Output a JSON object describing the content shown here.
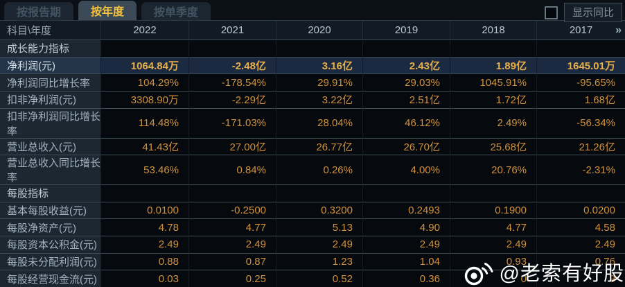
{
  "tabs": [
    {
      "label": "按报告期",
      "active": false
    },
    {
      "label": "按年度",
      "active": true
    },
    {
      "label": "按单季度",
      "active": false
    }
  ],
  "controls": {
    "show_yoy_label": "显示同比",
    "checkbox_checked": false
  },
  "table": {
    "corner_header": "科目\\年度",
    "years": [
      "2022",
      "2021",
      "2020",
      "2019",
      "2018",
      "2017"
    ],
    "more_icon": "»",
    "rows": [
      {
        "type": "section",
        "label": "成长能力指标",
        "values": [
          "",
          "",
          "",
          "",
          "",
          ""
        ]
      },
      {
        "type": "data",
        "highlight": true,
        "label": "净利润(元)",
        "values": [
          "1064.84万",
          "-2.48亿",
          "3.16亿",
          "2.43亿",
          "1.89亿",
          "1645.01万"
        ]
      },
      {
        "type": "data",
        "label": "净利润同比增长率",
        "values": [
          "104.29%",
          "-178.54%",
          "29.91%",
          "29.03%",
          "1045.91%",
          "-95.65%"
        ]
      },
      {
        "type": "data",
        "label": "扣非净利润(元)",
        "values": [
          "3308.90万",
          "-2.29亿",
          "3.22亿",
          "2.51亿",
          "1.72亿",
          "1.68亿"
        ]
      },
      {
        "type": "data",
        "label": "扣非净利润同比增长率",
        "values": [
          "114.48%",
          "-171.03%",
          "28.04%",
          "46.12%",
          "2.49%",
          "-56.34%"
        ]
      },
      {
        "type": "data",
        "label": "营业总收入(元)",
        "values": [
          "41.43亿",
          "27.00亿",
          "26.77亿",
          "26.70亿",
          "25.68亿",
          "21.26亿"
        ]
      },
      {
        "type": "data",
        "label": "营业总收入同比增长率",
        "values": [
          "53.46%",
          "0.84%",
          "0.26%",
          "4.00%",
          "20.76%",
          "-2.31%"
        ]
      },
      {
        "type": "section",
        "label": "每股指标",
        "values": [
          "",
          "",
          "",
          "",
          "",
          ""
        ]
      },
      {
        "type": "data",
        "label": "基本每股收益(元)",
        "values": [
          "0.0100",
          "-0.2500",
          "0.3200",
          "0.2493",
          "0.1900",
          "0.0200"
        ]
      },
      {
        "type": "data",
        "label": "每股净资产(元)",
        "values": [
          "4.78",
          "4.77",
          "5.13",
          "4.90",
          "4.77",
          "4.58"
        ]
      },
      {
        "type": "data",
        "label": "每股资本公积金(元)",
        "values": [
          "2.49",
          "2.49",
          "2.49",
          "2.49",
          "2.49",
          "2.49"
        ]
      },
      {
        "type": "data",
        "label": "每股未分配利润(元)",
        "values": [
          "0.88",
          "0.87",
          "1.23",
          "1.04",
          "0.93",
          "0.76"
        ]
      },
      {
        "type": "data",
        "label": "每股经营现金流(元)",
        "values": [
          "0.03",
          "0.25",
          "0.52",
          "0.36",
          "0",
          "9"
        ]
      }
    ]
  },
  "watermark": {
    "icon": "weibo-icon",
    "text": "@老索有好股"
  },
  "colors": {
    "active_tab_text": "#f2c13d",
    "active_tab_bg": "#3c4a57",
    "value_text": "#d0923f",
    "highlight_value_text": "#e8b04a",
    "highlight_row_bg": "#1b2a40",
    "label_cell_bg": "#1c2731",
    "data_cell_bg": "#06090d",
    "header_bg": "#121b24",
    "watermark_text": "#ffffff"
  }
}
